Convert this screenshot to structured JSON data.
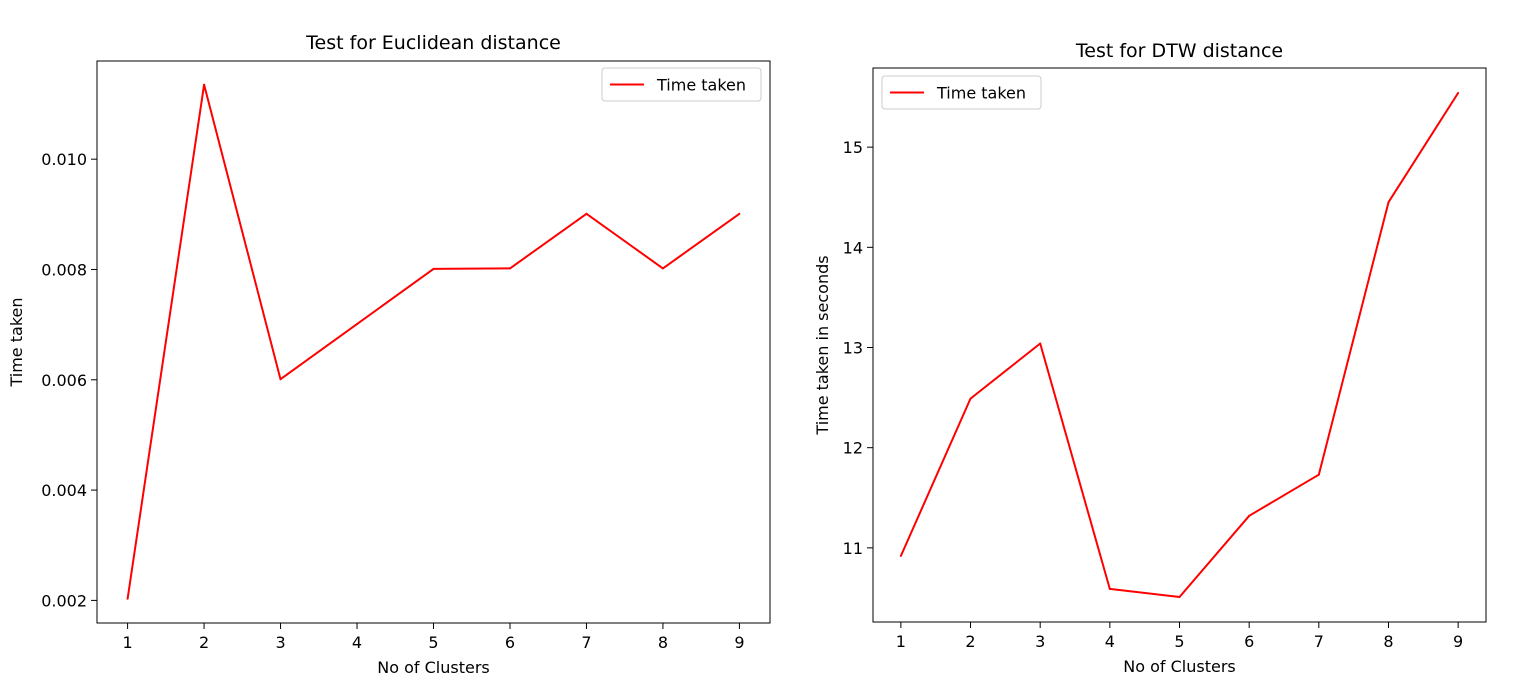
{
  "chart_data": [
    {
      "type": "line",
      "title": "Test for Euclidean distance",
      "xlabel": "No of Clusters",
      "ylabel": "Time taken",
      "x": [
        1,
        2,
        3,
        4,
        5,
        6,
        7,
        8,
        9
      ],
      "series": [
        {
          "name": "Time taken",
          "color": "#ff0000",
          "values": [
            0.00203,
            0.01135,
            0.00601,
            0.00701,
            0.00801,
            0.00802,
            0.00901,
            0.00802,
            0.00901
          ]
        }
      ],
      "xticks": [
        1,
        2,
        3,
        4,
        5,
        6,
        7,
        8,
        9
      ],
      "yticks": [
        0.002,
        0.004,
        0.006,
        0.008,
        0.01
      ],
      "ytick_labels": [
        "0.002",
        "0.004",
        "0.006",
        "0.008",
        "0.010"
      ],
      "xlim": [
        0.6,
        9.4
      ],
      "ylim": [
        0.00159,
        0.01178
      ],
      "legend": "upper right",
      "grid": false
    },
    {
      "type": "line",
      "title": "Test for DTW distance",
      "xlabel": "No of Clusters",
      "ylabel": "Time taken in seconds",
      "x": [
        1,
        2,
        3,
        4,
        5,
        6,
        7,
        8,
        9
      ],
      "series": [
        {
          "name": "Time taken",
          "color": "#ff0000",
          "values": [
            10.92,
            12.49,
            13.04,
            10.59,
            10.51,
            11.32,
            11.73,
            14.45,
            15.54
          ]
        }
      ],
      "xticks": [
        1,
        2,
        3,
        4,
        5,
        6,
        7,
        8,
        9
      ],
      "yticks": [
        11,
        12,
        13,
        14,
        15
      ],
      "ytick_labels": [
        "11",
        "12",
        "13",
        "14",
        "15"
      ],
      "xlim": [
        0.6,
        9.4
      ],
      "ylim": [
        10.26,
        15.79
      ],
      "legend": "upper left",
      "grid": false
    }
  ]
}
